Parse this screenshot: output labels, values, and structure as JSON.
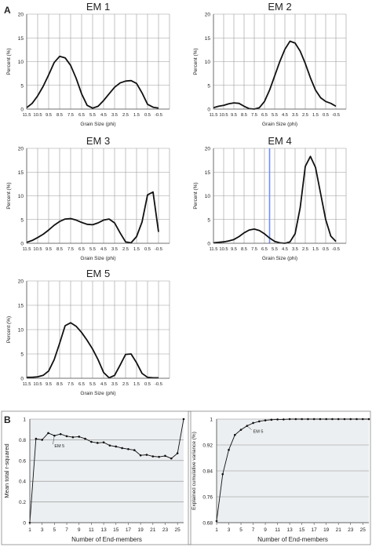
{
  "figure": {
    "panel_labels": [
      "A",
      "B"
    ]
  },
  "chart_data": [
    {
      "type": "line",
      "panel": "A",
      "title": "EM 1",
      "xlabel": "Grain Size (phi)",
      "ylabel": "Percent (%)",
      "x_ticks": [
        "11.5",
        "10.5",
        "9.5",
        "8.5",
        "7.5",
        "6.5",
        "5.5",
        "4.5",
        "3.5",
        "2.5",
        "1.5",
        "0.5",
        "-0.5"
      ],
      "ylim": [
        0,
        20
      ],
      "y_ticks": [
        0,
        5,
        10,
        15,
        20
      ],
      "grid": "vertical and horizontal",
      "x": [
        11.5,
        11.0,
        10.5,
        10.0,
        9.5,
        9.0,
        8.5,
        8.0,
        7.5,
        7.0,
        6.5,
        6.0,
        5.5,
        5.0,
        4.5,
        4.0,
        3.5,
        3.0,
        2.5,
        2.0,
        1.5,
        1.0,
        0.5,
        0.0,
        -0.5
      ],
      "values": [
        0.3,
        1.2,
        2.8,
        4.8,
        7.2,
        9.8,
        11.1,
        10.8,
        9.2,
        6.5,
        3.2,
        0.8,
        0.2,
        0.6,
        1.8,
        3.2,
        4.6,
        5.5,
        5.9,
        6.0,
        5.4,
        3.4,
        1.0,
        0.4,
        0.2
      ]
    },
    {
      "type": "line",
      "panel": "A",
      "title": "EM 2",
      "xlabel": "Grain Size (phi)",
      "ylabel": "Percent (%)",
      "x_ticks": [
        "11.5",
        "10.5",
        "9.5",
        "8.5",
        "7.5",
        "6.5",
        "5.5",
        "4.5",
        "3.5",
        "2.5",
        "1.5",
        "0.5",
        "-0.5"
      ],
      "ylim": [
        0,
        20
      ],
      "y_ticks": [
        0,
        5,
        10,
        15,
        20
      ],
      "grid": "vertical and horizontal",
      "x": [
        11.5,
        11.0,
        10.5,
        10.0,
        9.5,
        9.0,
        8.5,
        8.0,
        7.5,
        7.0,
        6.5,
        6.0,
        5.5,
        5.0,
        4.5,
        4.0,
        3.5,
        3.0,
        2.5,
        2.0,
        1.5,
        1.0,
        0.5,
        0.0,
        -0.5
      ],
      "values": [
        0.3,
        0.6,
        0.8,
        1.1,
        1.3,
        1.2,
        0.6,
        0.1,
        0.0,
        0.3,
        1.6,
        4.0,
        7.0,
        10.0,
        12.6,
        14.3,
        13.9,
        12.2,
        9.6,
        6.6,
        4.0,
        2.4,
        1.6,
        1.2,
        0.6
      ]
    },
    {
      "type": "line",
      "panel": "A",
      "title": "EM 3",
      "xlabel": "Grain Size (phi)",
      "ylabel": "Percent (%)",
      "x_ticks": [
        "11.5",
        "10.5",
        "9.5",
        "8.5",
        "7.5",
        "6.5",
        "5.5",
        "4.5",
        "3.5",
        "2.5",
        "1.5",
        "0.5",
        "-0.5"
      ],
      "ylim": [
        0,
        20
      ],
      "y_ticks": [
        0,
        5,
        10,
        15,
        20
      ],
      "grid": "vertical and horizontal",
      "x": [
        11.5,
        11.0,
        10.5,
        10.0,
        9.5,
        9.0,
        8.5,
        8.0,
        7.5,
        7.0,
        6.5,
        6.0,
        5.5,
        5.0,
        4.5,
        4.0,
        3.5,
        3.0,
        2.5,
        2.0,
        1.5,
        1.0,
        0.5,
        0.0,
        -0.5
      ],
      "values": [
        0.2,
        0.6,
        1.2,
        1.9,
        2.8,
        3.8,
        4.6,
        5.1,
        5.2,
        4.9,
        4.4,
        4.0,
        3.9,
        4.3,
        4.9,
        5.1,
        4.3,
        2.2,
        0.3,
        0.1,
        1.4,
        4.5,
        10.2,
        10.8,
        2.4
      ]
    },
    {
      "type": "line",
      "panel": "A",
      "title": "EM 4",
      "xlabel": "Grain Size (phi)",
      "ylabel": "Percent (%)",
      "x_ticks": [
        "11.5",
        "10.5",
        "9.5",
        "8.5",
        "7.5",
        "6.5",
        "5.5",
        "4.5",
        "3.5",
        "2.5",
        "1.5",
        "0.5",
        "-0.5"
      ],
      "ylim": [
        0,
        20
      ],
      "y_ticks": [
        0,
        5,
        10,
        15,
        20
      ],
      "grid": "vertical and horizontal",
      "marker_line_x": 6.0,
      "x": [
        11.5,
        11.0,
        10.5,
        10.0,
        9.5,
        9.0,
        8.5,
        8.0,
        7.5,
        7.0,
        6.5,
        6.0,
        5.5,
        5.0,
        4.5,
        4.0,
        3.5,
        3.0,
        2.5,
        2.0,
        1.5,
        1.0,
        0.5,
        0.0,
        -0.5
      ],
      "values": [
        0.1,
        0.2,
        0.3,
        0.5,
        0.8,
        1.4,
        2.2,
        2.8,
        3.0,
        2.7,
        2.0,
        1.1,
        0.4,
        0.1,
        0.0,
        0.3,
        2.0,
        7.5,
        16.2,
        18.3,
        16.0,
        10.5,
        5.0,
        1.5,
        0.4
      ]
    },
    {
      "type": "line",
      "panel": "A",
      "title": "EM 5",
      "xlabel": "Grain Size (phi)",
      "ylabel": "Percent (%)",
      "x_ticks": [
        "11.5",
        "10.5",
        "9.5",
        "8.5",
        "7.5",
        "6.5",
        "5.5",
        "4.5",
        "3.5",
        "2.5",
        "1.5",
        "0.5",
        "-0.5"
      ],
      "ylim": [
        0,
        20
      ],
      "y_ticks": [
        0,
        5,
        10,
        15,
        20
      ],
      "grid": "vertical and horizontal",
      "x": [
        11.5,
        11.0,
        10.5,
        10.0,
        9.5,
        9.0,
        8.5,
        8.0,
        7.5,
        7.0,
        6.5,
        6.0,
        5.5,
        5.0,
        4.5,
        4.0,
        3.5,
        3.0,
        2.5,
        2.0,
        1.5,
        1.0,
        0.5,
        0.0,
        -0.5
      ],
      "values": [
        0.2,
        0.2,
        0.3,
        0.6,
        1.5,
        3.8,
        7.2,
        10.8,
        11.4,
        10.7,
        9.4,
        7.8,
        6.0,
        3.8,
        1.2,
        0.1,
        0.6,
        2.7,
        4.9,
        5.0,
        3.2,
        1.0,
        0.2,
        0.1,
        0.1
      ]
    },
    {
      "type": "line",
      "panel": "B",
      "title": "",
      "xlabel": "Number of End-members",
      "ylabel": "Mean total r-squared",
      "x_ticks": [
        "1",
        "3",
        "5",
        "7",
        "9",
        "11",
        "13",
        "15",
        "17",
        "19",
        "21",
        "23",
        "25"
      ],
      "ylim": [
        0,
        1
      ],
      "y_ticks": [
        "0",
        "0.2",
        "0.4",
        "0.6",
        "0.8",
        "1"
      ],
      "grid": "horizontal",
      "annotation": "EM 5",
      "x": [
        1,
        2,
        3,
        4,
        5,
        6,
        7,
        8,
        9,
        10,
        11,
        12,
        13,
        14,
        15,
        16,
        17,
        18,
        19,
        20,
        21,
        22,
        23,
        24,
        25,
        26
      ],
      "values": [
        0.0,
        0.81,
        0.8,
        0.865,
        0.84,
        0.855,
        0.835,
        0.825,
        0.83,
        0.81,
        0.78,
        0.77,
        0.775,
        0.745,
        0.735,
        0.72,
        0.71,
        0.7,
        0.65,
        0.655,
        0.64,
        0.635,
        0.645,
        0.62,
        0.67,
        1.0
      ]
    },
    {
      "type": "line",
      "panel": "B",
      "title": "",
      "xlabel": "Number of End-members",
      "ylabel": "Explained cumulative variance (%)",
      "x_ticks": [
        "1",
        "3",
        "5",
        "7",
        "9",
        "11",
        "13",
        "15",
        "17",
        "19",
        "21",
        "23",
        "25"
      ],
      "ylim": [
        0.68,
        1
      ],
      "y_ticks": [
        "0.68",
        "0.76",
        "0.84",
        "0.92",
        "1"
      ],
      "grid": "horizontal",
      "annotation": "EM 5",
      "x": [
        1,
        2,
        3,
        4,
        5,
        6,
        7,
        8,
        9,
        10,
        11,
        12,
        13,
        14,
        15,
        16,
        17,
        18,
        19,
        20,
        21,
        22,
        23,
        24,
        25,
        26
      ],
      "values": [
        0.685,
        0.83,
        0.905,
        0.951,
        0.967,
        0.979,
        0.988,
        0.993,
        0.996,
        0.998,
        0.999,
        0.999,
        1.0,
        1.0,
        1.0,
        1.0,
        1.0,
        1.0,
        1.0,
        1.0,
        1.0,
        1.0,
        1.0,
        1.0,
        1.0,
        1.0
      ]
    }
  ]
}
